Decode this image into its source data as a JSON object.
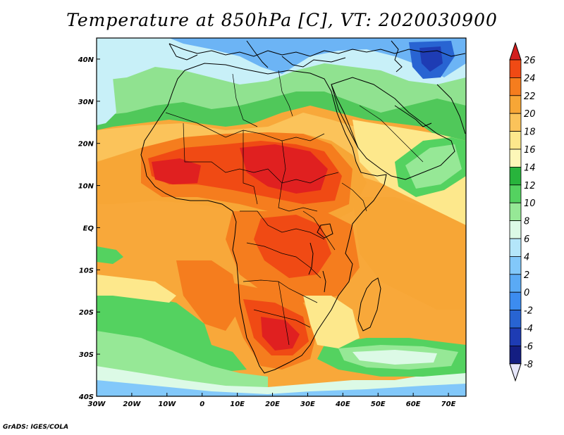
{
  "title": "Temperature at 850hPa [C], VT: 2020030900",
  "footer": "GrADS: IGES/COLA",
  "map": {
    "projection": "latlon",
    "lon_range": [
      -30,
      75
    ],
    "lat_range": [
      -40,
      45
    ],
    "lon_ticks": [
      "30W",
      "20W",
      "10W",
      "0",
      "10E",
      "20E",
      "30E",
      "40E",
      "50E",
      "60E",
      "70E"
    ],
    "lat_ticks": [
      "40N",
      "30N",
      "20N",
      "10N",
      "EQ",
      "10S",
      "20S",
      "30S",
      "40S"
    ],
    "variable": "Temperature at 850hPa",
    "units": "C"
  },
  "colorbar": {
    "labels": [
      "26",
      "24",
      "22",
      "20",
      "18",
      "16",
      "14",
      "12",
      "10",
      "8",
      "6",
      "4",
      "2",
      "0",
      "-2",
      "-4",
      "-6",
      "-8"
    ],
    "colors": [
      "#e02020",
      "#f04a14",
      "#f57d1e",
      "#f7a636",
      "#fbc35a",
      "#fde88c",
      "#fdf7b8",
      "#28b43c",
      "#54d260",
      "#96e896",
      "#dcfae6",
      "#b4e6fa",
      "#82c8fa",
      "#5aaaf5",
      "#3c8cf0",
      "#2864d2",
      "#1e3cb4",
      "#141e82"
    ],
    "top_arrow_color": "#d21e1e",
    "bottom_arrow_color": "#e6e6fa"
  }
}
